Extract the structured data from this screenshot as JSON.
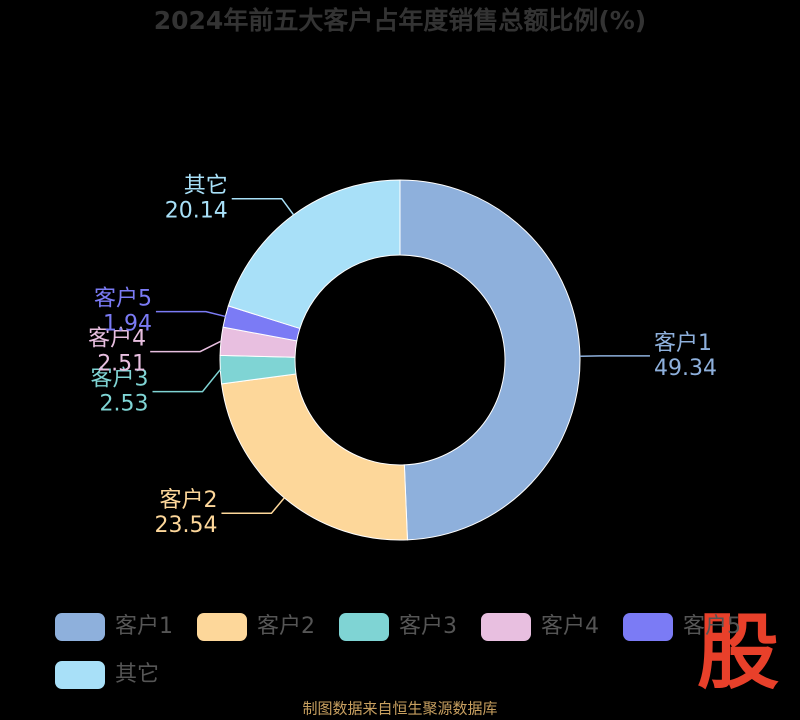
{
  "chart_data": {
    "type": "donut",
    "title": "2024年前五大客户占年度销售总额比例(%)",
    "categories": [
      "客户1",
      "客户2",
      "客户3",
      "客户4",
      "客户5",
      "其它"
    ],
    "values": [
      49.34,
      23.54,
      2.53,
      2.51,
      1.94,
      20.14
    ],
    "colors": [
      "#8eb0dc",
      "#fdd79a",
      "#7fd4d4",
      "#e8bfe0",
      "#7b7bf5",
      "#a8e0f8"
    ],
    "legend": "bottom"
  },
  "source": "制图数据来自恒生聚源数据库",
  "watermark": "股"
}
